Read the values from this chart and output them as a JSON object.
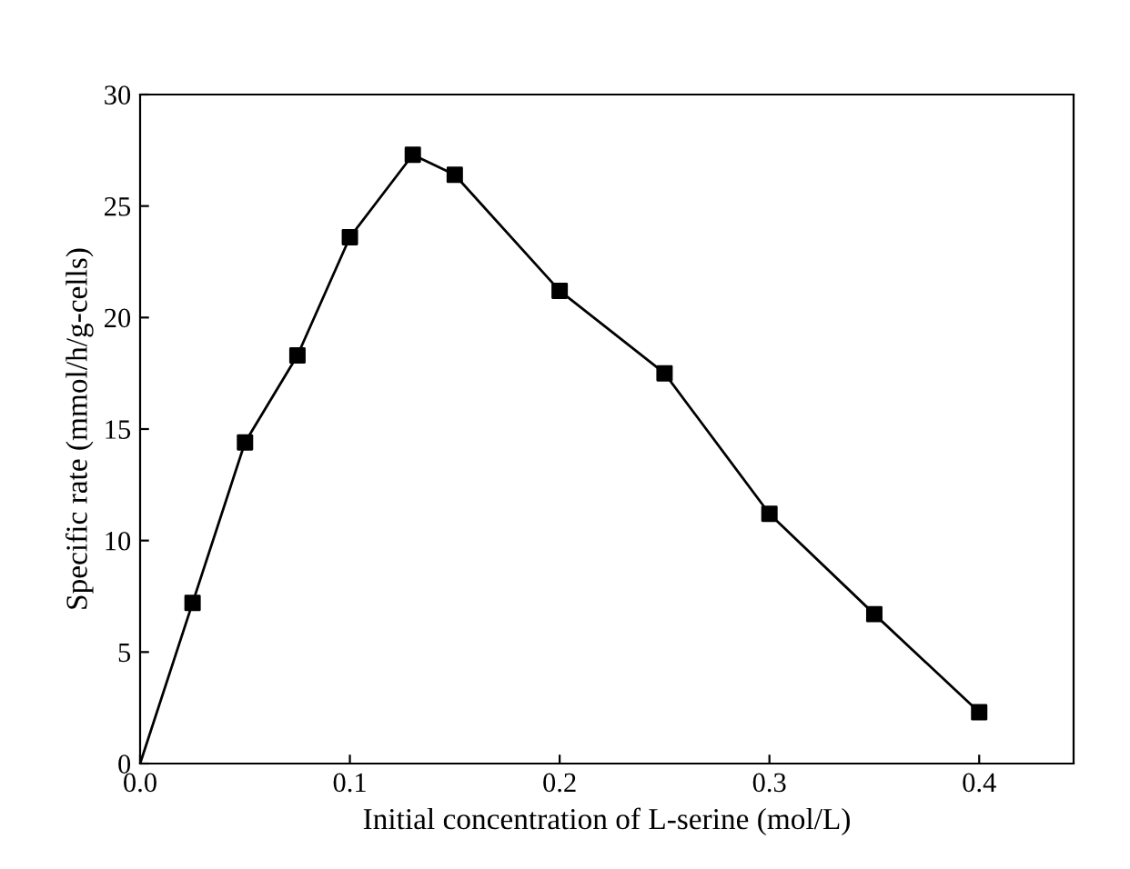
{
  "chart_data": {
    "type": "line",
    "xlabel": "Initial concentration of L-serine (mol/L)",
    "ylabel": "Specific rate (mmol/h/g-cells)",
    "xlim": [
      0,
      0.445
    ],
    "ylim": [
      0,
      30
    ],
    "xticks": [
      {
        "value": 0,
        "label": "0.0"
      },
      0.1,
      0.2,
      0.3,
      0.4
    ],
    "yticks": [
      0,
      5,
      10,
      15,
      20,
      25,
      30
    ],
    "grid": false,
    "legend": false,
    "series": [
      {
        "color": "#000000",
        "marker": "none",
        "line_style": "solid",
        "x": [
          0,
          0.025,
          0.05,
          0.075,
          0.1,
          0.13,
          0.15,
          0.2,
          0.25,
          0.3,
          0.35,
          0.4
        ],
        "values": [
          0,
          7.2,
          14.4,
          18.3,
          23.6,
          27.3,
          26.4,
          21.2,
          17.5,
          11.2,
          6.7,
          2.3
        ]
      },
      {
        "type": "scatter",
        "color": "#000000",
        "marker": "square",
        "x": [
          0.025,
          0.05,
          0.075,
          0.1,
          0.13,
          0.15,
          0.2,
          0.25,
          0.3,
          0.35,
          0.4
        ],
        "values": [
          7.2,
          14.4,
          18.3,
          23.6,
          27.3,
          26.4,
          21.2,
          17.5,
          11.2,
          6.7,
          2.3
        ]
      }
    ]
  }
}
